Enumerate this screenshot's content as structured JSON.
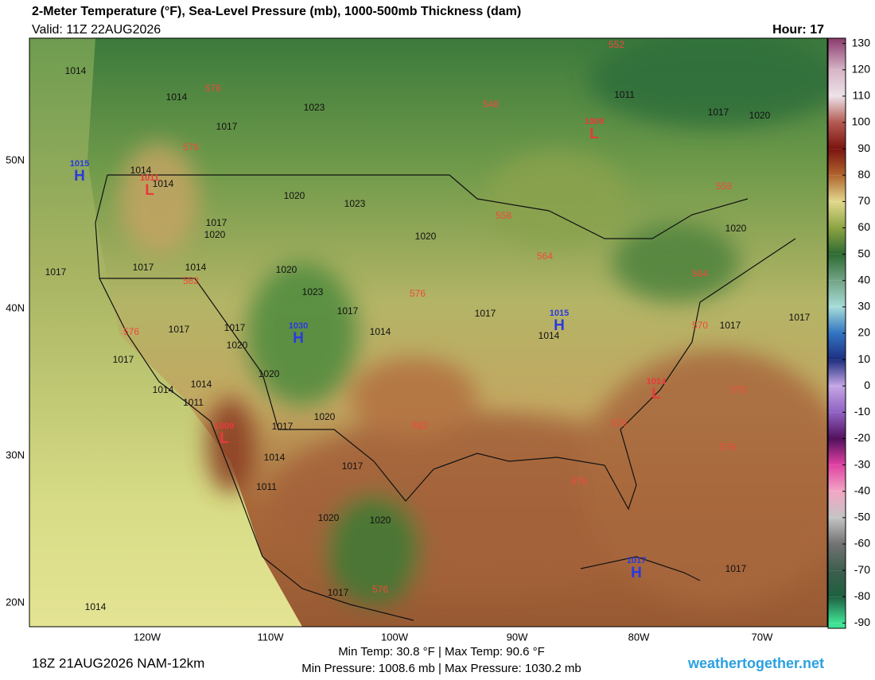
{
  "header": {
    "title": "2-Meter Temperature (°F), Sea-Level Pressure (mb), 1000-500mb Thickness (dam)",
    "valid": "Valid: 11Z 22AUG2026",
    "hour": "Hour: 17"
  },
  "map": {
    "lat_labels": [
      "50N",
      "40N",
      "30N",
      "20N"
    ],
    "lon_labels": [
      "120W",
      "110W",
      "100W",
      "90W",
      "80W",
      "70W"
    ],
    "isobar_labels": [
      1014,
      1014,
      1023,
      1017,
      1014,
      1014,
      1020,
      1023,
      1017,
      1020,
      1020,
      1017,
      1014,
      1020,
      1017,
      1023,
      1017,
      1017,
      1014,
      1017,
      1017,
      1020,
      1014,
      1017,
      1017,
      1017,
      1020,
      1014,
      1014,
      1011,
      1020,
      1017,
      1014,
      1017,
      1011,
      1020,
      1020,
      1017,
      1017,
      1014,
      1011,
      1017,
      1020,
      1020
    ],
    "thickness_labels": [
      552,
      576,
      546,
      576,
      558,
      558,
      564,
      582,
      564,
      576,
      570,
      576,
      576,
      582,
      576,
      576,
      576,
      576
    ],
    "centers": [
      {
        "letter": "H",
        "pressure": 1015
      },
      {
        "letter": "L",
        "pressure": 1011
      },
      {
        "letter": "L",
        "pressure": 1009
      },
      {
        "letter": "H",
        "pressure": 1030
      },
      {
        "letter": "H",
        "pressure": 1015
      },
      {
        "letter": "L",
        "pressure": 1014
      },
      {
        "letter": "L",
        "pressure": 1009
      },
      {
        "letter": "H",
        "pressure": 1017
      }
    ],
    "center_colors": {
      "H": "#2a3ae0",
      "L": "#e83a3a"
    },
    "isobar_color": "#111111",
    "thickness_color": "#f04a3a"
  },
  "colorbar": {
    "ylim": [
      -92,
      132
    ],
    "ticks": [
      130,
      120,
      110,
      100,
      90,
      80,
      70,
      60,
      50,
      40,
      30,
      20,
      10,
      0,
      -10,
      -20,
      -30,
      -40,
      -50,
      -60,
      -70,
      -80,
      -90
    ],
    "colors": [
      "#8a3a6c",
      "#d6b4c6",
      "#ece2e8",
      "#b45a52",
      "#7a1410",
      "#b0642e",
      "#e2d88e",
      "#8ca442",
      "#2e6a32",
      "#72a486",
      "#a6dcd8",
      "#3274c2",
      "#1e2e80",
      "#c4a6e4",
      "#9062c2",
      "#52105e",
      "#e042a2",
      "#f2a6c4",
      "#c4c4c4",
      "#727272",
      "#3e5e4e",
      "#1e6040",
      "#40e294"
    ]
  },
  "footer": {
    "run": "18Z 21AUG2026 NAM-12km",
    "stats_temp": "Min Temp:  30.8 °F | Max Temp:  90.6 °F",
    "stats_pressure": "Min Pressure: 1008.6 mb | Max Pressure: 1030.2 mb",
    "site": "weathertogether.net"
  }
}
